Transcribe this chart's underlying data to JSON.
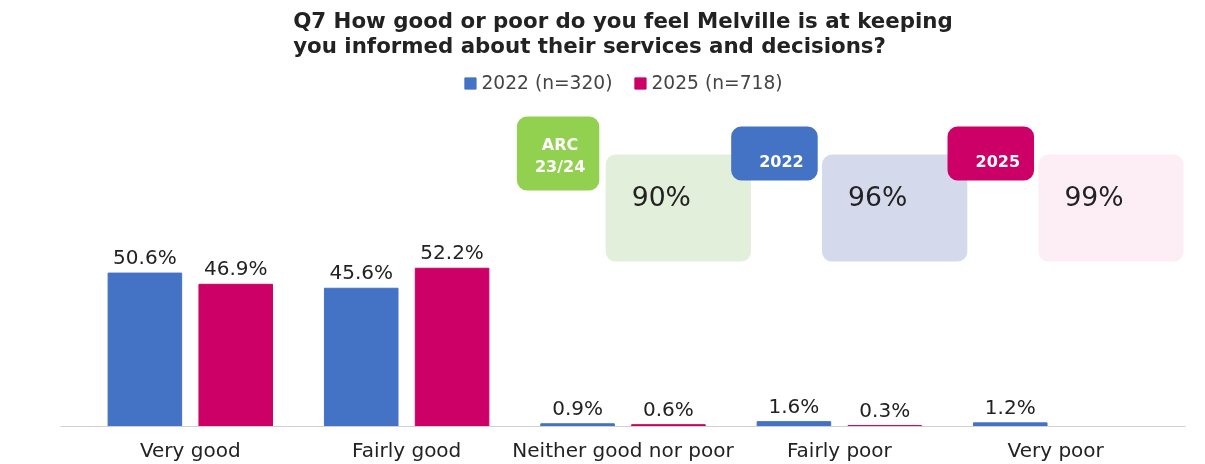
{
  "chart_data": {
    "type": "bar",
    "title": "Q7 How good or poor do you feel Melville is at keeping you informed about their services and decisions?",
    "categories": [
      "Very good",
      "Fairly good",
      "Neither good nor poor",
      "Fairly poor",
      "Very poor"
    ],
    "series": [
      {
        "name": "2022 (n=320)",
        "color": "#4472c4",
        "values": [
          50.6,
          45.6,
          0.9,
          1.6,
          1.2
        ],
        "value_labels": [
          "50.6%",
          "45.6%",
          "0.9%",
          "1.6%",
          "1.2%"
        ]
      },
      {
        "name": "2025 (n=718)",
        "color": "#cc0066",
        "values": [
          46.9,
          52.2,
          0.6,
          0.3,
          null
        ],
        "value_labels": [
          "46.9%",
          "52.2%",
          "0.6%",
          "0.3%",
          null
        ]
      }
    ],
    "legend": "top",
    "grid": false,
    "annotations": [
      "ARC 23/24",
      "90%",
      "2022",
      "96%",
      "2025",
      "99%"
    ]
  }
}
